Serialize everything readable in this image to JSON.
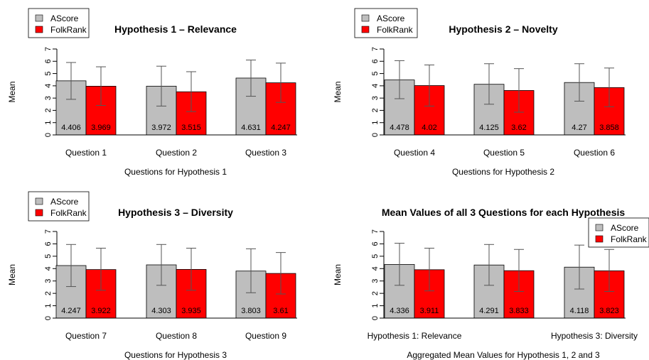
{
  "colors": {
    "ascore": "#bebebe",
    "folkrank": "#ff0000",
    "axis": "#000000",
    "error_bar": "#555555"
  },
  "chart_data": [
    {
      "type": "bar",
      "title": "Hypothesis 1 – Relevance",
      "xlabel": "Questions for Hypothesis 1",
      "ylabel": "Mean",
      "ylim": [
        0,
        7
      ],
      "yticks": [
        "0",
        "1",
        "2",
        "3",
        "4",
        "5",
        "6",
        "7"
      ],
      "legend_position": "top-left",
      "categories": [
        "Question 1",
        "Question 2",
        "Question 3"
      ],
      "series": [
        {
          "name": "AScore",
          "values": [
            4.406,
            3.972,
            4.631
          ],
          "value_labels": [
            "4.406",
            "3.972",
            "4.631"
          ],
          "err_low": [
            2.9,
            2.35,
            3.15
          ],
          "err_high": [
            5.9,
            5.6,
            6.1
          ]
        },
        {
          "name": "FolkRank",
          "values": [
            3.969,
            3.515,
            4.247
          ],
          "value_labels": [
            "3.969",
            "3.515",
            "4.247"
          ],
          "err_low": [
            2.4,
            1.9,
            2.65
          ],
          "err_high": [
            5.55,
            5.15,
            5.85
          ]
        }
      ]
    },
    {
      "type": "bar",
      "title": "Hypothesis 2 – Novelty",
      "xlabel": "Questions for Hypothesis 2",
      "ylabel": "Mean",
      "ylim": [
        0,
        7
      ],
      "yticks": [
        "0",
        "1",
        "2",
        "3",
        "4",
        "5",
        "6",
        "7"
      ],
      "legend_position": "top-left",
      "categories": [
        "Question 4",
        "Question 5",
        "Question 6"
      ],
      "series": [
        {
          "name": "AScore",
          "values": [
            4.478,
            4.125,
            4.27
          ],
          "value_labels": [
            "4.478",
            "4.125",
            "4.27"
          ],
          "err_low": [
            2.95,
            2.5,
            2.75
          ],
          "err_high": [
            6.05,
            5.8,
            5.8
          ]
        },
        {
          "name": "FolkRank",
          "values": [
            4.02,
            3.62,
            3.858
          ],
          "value_labels": [
            "4.02",
            "3.62",
            "3.858"
          ],
          "err_low": [
            2.35,
            1.85,
            2.3
          ],
          "err_high": [
            5.7,
            5.4,
            5.45
          ]
        }
      ]
    },
    {
      "type": "bar",
      "title": "Hypothesis 3 – Diversity",
      "xlabel": "Questions for Hypothesis 3",
      "ylabel": "Mean",
      "ylim": [
        0,
        7
      ],
      "yticks": [
        "0",
        "1",
        "2",
        "3",
        "4",
        "5",
        "6",
        "7"
      ],
      "legend_position": "top-left",
      "categories": [
        "Question 7",
        "Question 8",
        "Question 9"
      ],
      "series": [
        {
          "name": "AScore",
          "values": [
            4.247,
            4.303,
            3.803
          ],
          "value_labels": [
            "4.247",
            "4.303",
            "3.803"
          ],
          "err_low": [
            2.55,
            2.65,
            2.05
          ],
          "err_high": [
            5.95,
            5.95,
            5.6
          ]
        },
        {
          "name": "FolkRank",
          "values": [
            3.922,
            3.935,
            3.61
          ],
          "value_labels": [
            "3.922",
            "3.935",
            "3.61"
          ],
          "err_low": [
            2.25,
            2.25,
            1.95
          ],
          "err_high": [
            5.65,
            5.65,
            5.3
          ]
        }
      ]
    },
    {
      "type": "bar",
      "title": "Mean Values of all 3 Questions for each Hypothesis",
      "xlabel": "Aggregated Mean Values for Hypothesis 1, 2 and 3",
      "ylabel": "Mean",
      "ylim": [
        0,
        7
      ],
      "yticks": [
        "0",
        "1",
        "2",
        "3",
        "4",
        "5",
        "6",
        "7"
      ],
      "legend_position": "top-right",
      "categories": [
        "Hypothesis 1: Relevance",
        "",
        "Hypothesis 3: Diversity"
      ],
      "series": [
        {
          "name": "AScore",
          "values": [
            4.336,
            4.291,
            4.118
          ],
          "value_labels": [
            "4.336",
            "4.291",
            "4.118"
          ],
          "err_low": [
            2.65,
            2.65,
            2.35
          ],
          "err_high": [
            6.05,
            5.95,
            5.9
          ]
        },
        {
          "name": "FolkRank",
          "values": [
            3.911,
            3.833,
            3.823
          ],
          "value_labels": [
            "3.911",
            "3.833",
            "3.823"
          ],
          "err_low": [
            2.2,
            2.15,
            2.15
          ],
          "err_high": [
            5.65,
            5.55,
            5.55
          ]
        }
      ]
    }
  ]
}
